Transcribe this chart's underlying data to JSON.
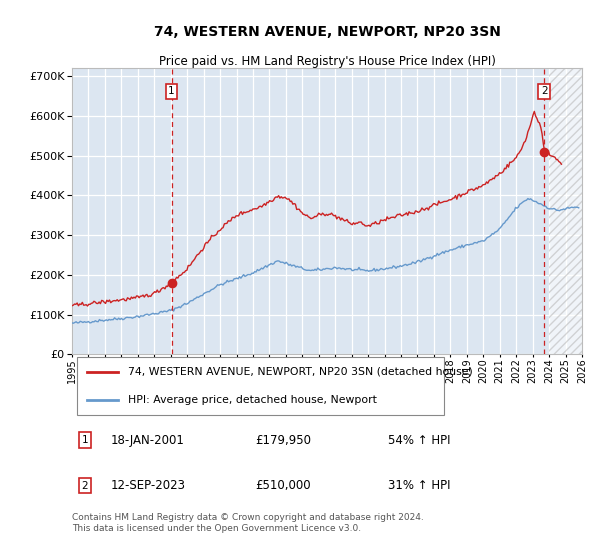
{
  "title": "74, WESTERN AVENUE, NEWPORT, NP20 3SN",
  "subtitle": "Price paid vs. HM Land Registry's House Price Index (HPI)",
  "ylim": [
    0,
    720000
  ],
  "xlim_start": 1995.0,
  "xlim_end": 2026.0,
  "background_color": "#dce6f1",
  "grid_color": "#ffffff",
  "hpi_line_color": "#6699cc",
  "price_line_color": "#cc2222",
  "vline_color": "#cc2222",
  "point1_date": 2001.05,
  "point1_value": 179950,
  "point2_date": 2023.71,
  "point2_value": 510000,
  "legend_line1": "74, WESTERN AVENUE, NEWPORT, NP20 3SN (detached house)",
  "legend_line2": "HPI: Average price, detached house, Newport",
  "annotation1_num": "1",
  "annotation1_date": "18-JAN-2001",
  "annotation1_price": "£179,950",
  "annotation1_hpi": "54% ↑ HPI",
  "annotation2_num": "2",
  "annotation2_date": "12-SEP-2023",
  "annotation2_price": "£510,000",
  "annotation2_hpi": "31% ↑ HPI",
  "footnote": "Contains HM Land Registry data © Crown copyright and database right 2024.\nThis data is licensed under the Open Government Licence v3.0.",
  "hatch_region_start": 2024.0,
  "ytick_values": [
    0,
    100000,
    200000,
    300000,
    400000,
    500000,
    600000,
    700000
  ]
}
